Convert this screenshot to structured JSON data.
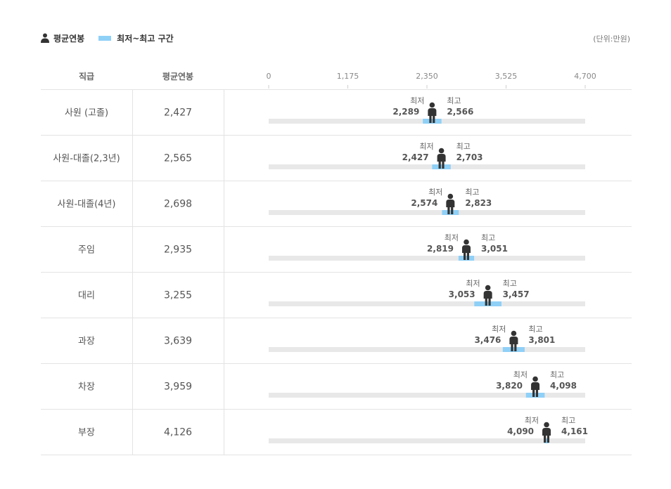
{
  "legend": {
    "avg_label": "평균연봉",
    "range_label": "최저~최고 구간"
  },
  "unit_label": "(단위:만원)",
  "headers": {
    "rank": "직급",
    "avg": "평균연봉"
  },
  "labels": {
    "min": "최저",
    "max": "최고"
  },
  "colors": {
    "range": "#8fd0f7",
    "track": "#e8e8e8",
    "person": "#333333",
    "grid": "#e3e3e3"
  },
  "chart_data": {
    "type": "range-bar",
    "xlim": [
      0,
      4700
    ],
    "xticks": [
      0,
      1175,
      2350,
      3525,
      4700
    ],
    "xtick_labels": [
      "0",
      "1,175",
      "2,350",
      "3,525",
      "4,700"
    ],
    "rows": [
      {
        "rank": "사원 (고졸)",
        "avg": 2427,
        "avg_label": "2,427",
        "min": 2289,
        "min_label": "2,289",
        "max": 2566,
        "max_label": "2,566"
      },
      {
        "rank": "사원-대졸(2,3년)",
        "avg": 2565,
        "avg_label": "2,565",
        "min": 2427,
        "min_label": "2,427",
        "max": 2703,
        "max_label": "2,703"
      },
      {
        "rank": "사원-대졸(4년)",
        "avg": 2698,
        "avg_label": "2,698",
        "min": 2574,
        "min_label": "2,574",
        "max": 2823,
        "max_label": "2,823"
      },
      {
        "rank": "주임",
        "avg": 2935,
        "avg_label": "2,935",
        "min": 2819,
        "min_label": "2,819",
        "max": 3051,
        "max_label": "3,051"
      },
      {
        "rank": "대리",
        "avg": 3255,
        "avg_label": "3,255",
        "min": 3053,
        "min_label": "3,053",
        "max": 3457,
        "max_label": "3,457"
      },
      {
        "rank": "과장",
        "avg": 3639,
        "avg_label": "3,639",
        "min": 3476,
        "min_label": "3,476",
        "max": 3801,
        "max_label": "3,801"
      },
      {
        "rank": "차장",
        "avg": 3959,
        "avg_label": "3,959",
        "min": 3820,
        "min_label": "3,820",
        "max": 4098,
        "max_label": "4,098"
      },
      {
        "rank": "부장",
        "avg": 4126,
        "avg_label": "4,126",
        "min": 4090,
        "min_label": "4,090",
        "max": 4161,
        "max_label": "4,161"
      }
    ]
  }
}
